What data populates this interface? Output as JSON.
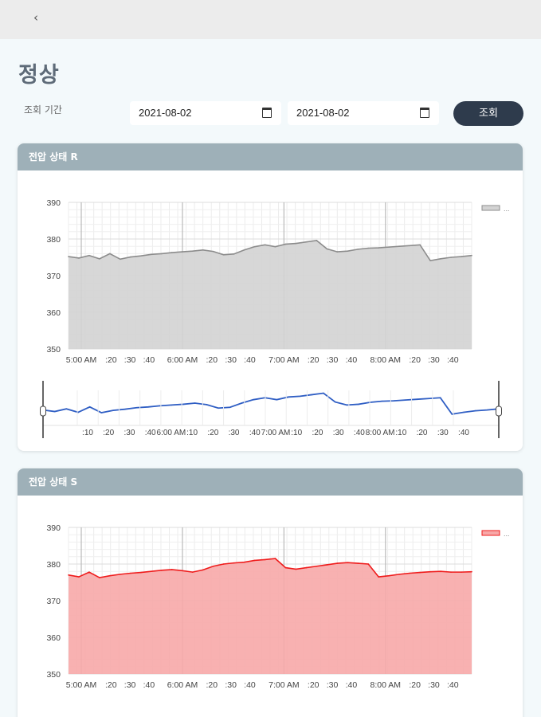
{
  "header": {
    "back_label": "‹"
  },
  "page": {
    "title": "정상"
  },
  "filter": {
    "period_label": "조회 기간",
    "start_date": "2021-08-02",
    "end_date": "2021-08-02",
    "search_label": "조회"
  },
  "cards": [
    {
      "title": "전압 상태 R",
      "legend_label": "..."
    },
    {
      "title": "전압 상태 S",
      "legend_label": "..."
    }
  ],
  "chart_data": [
    {
      "type": "area",
      "title": "전압 상태 R",
      "y_ticks": [
        "390",
        "380",
        "370",
        "360",
        "350"
      ],
      "ylim": [
        350,
        390
      ],
      "x_tick_labels": [
        "5:00 AM",
        ":20",
        ":30",
        ":40",
        "6:00 AM",
        ":20",
        ":30",
        ":40",
        "7:00 AM",
        ":20",
        ":30",
        ":40",
        "8:00 AM",
        ":20",
        ":30",
        ":40"
      ],
      "navigator_tick_labels": [
        ":10",
        ":20",
        ":30",
        ":40",
        "6:00 AM",
        ":10",
        ":20",
        ":30",
        ":40",
        "7:00 AM",
        ":10",
        ":20",
        ":30",
        ":40",
        "8:00 AM",
        ":10",
        ":20",
        ":30",
        ":40"
      ],
      "legend": "...",
      "color": "#8c8c8c",
      "fill": "#d3d3d3",
      "navigator_color": "#2f5ec4",
      "series": [
        {
          "values": [
            375.2,
            374.8,
            375.5,
            374.6,
            376.0,
            374.5,
            375.1,
            375.4,
            375.8,
            376.0,
            376.3,
            376.5,
            376.7,
            377.0,
            376.6,
            375.7,
            375.9,
            377.0,
            377.9,
            378.4,
            377.9,
            378.6,
            378.8,
            379.2,
            379.6,
            377.3,
            376.5,
            376.7,
            377.2,
            377.5,
            377.6,
            377.8,
            378.0,
            378.2,
            378.4,
            374.1,
            374.6,
            375.0,
            375.2,
            375.5
          ]
        }
      ]
    },
    {
      "type": "area",
      "title": "전압 상태 S",
      "y_ticks": [
        "390",
        "380",
        "370",
        "360",
        "350"
      ],
      "ylim": [
        350,
        390
      ],
      "x_tick_labels": [
        "5:00 AM",
        ":20",
        ":30",
        ":40",
        "6:00 AM",
        ":20",
        ":30",
        ":40",
        "7:00 AM",
        ":20",
        ":30",
        ":40",
        "8:00 AM",
        ":20",
        ":30",
        ":40"
      ],
      "legend": "...",
      "color": "#ef1c1c",
      "fill": "#f7a8a8",
      "series": [
        {
          "values": [
            377.0,
            376.5,
            377.8,
            376.3,
            376.8,
            377.2,
            377.5,
            377.7,
            378.0,
            378.3,
            378.5,
            378.2,
            377.8,
            378.4,
            379.4,
            380.0,
            380.3,
            380.5,
            381.0,
            381.2,
            381.5,
            379.0,
            378.6,
            379.0,
            379.4,
            379.8,
            380.2,
            380.4,
            380.2,
            380.0,
            376.5,
            376.8,
            377.2,
            377.5,
            377.7,
            377.9,
            378.0,
            377.8,
            377.8,
            377.9
          ]
        }
      ]
    }
  ]
}
